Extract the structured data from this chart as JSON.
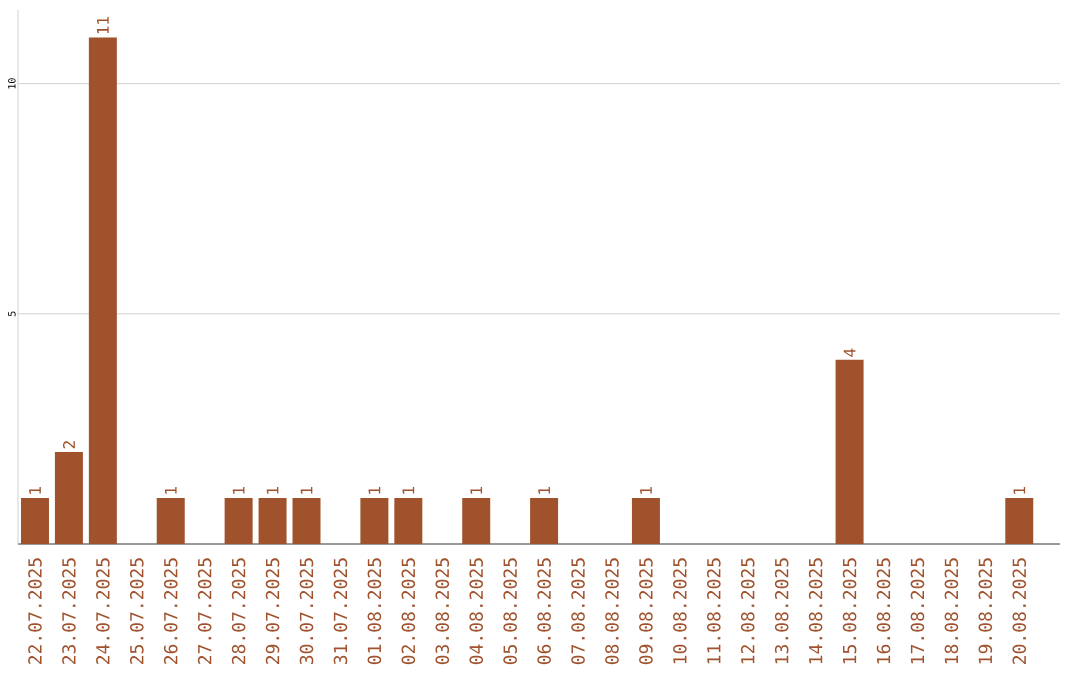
{
  "chart_data": {
    "type": "bar",
    "categories": [
      "22.07.2025",
      "23.07.2025",
      "24.07.2025",
      "25.07.2025",
      "26.07.2025",
      "27.07.2025",
      "28.07.2025",
      "29.07.2025",
      "30.07.2025",
      "31.07.2025",
      "01.08.2025",
      "02.08.2025",
      "03.08.2025",
      "04.08.2025",
      "05.08.2025",
      "06.08.2025",
      "07.08.2025",
      "08.08.2025",
      "09.08.2025",
      "10.08.2025",
      "11.08.2025",
      "12.08.2025",
      "13.08.2025",
      "14.08.2025",
      "15.08.2025",
      "16.08.2025",
      "17.08.2025",
      "18.08.2025",
      "19.08.2025",
      "20.08.2025"
    ],
    "values": [
      1,
      2,
      11,
      0,
      1,
      0,
      1,
      1,
      1,
      0,
      1,
      1,
      0,
      1,
      0,
      1,
      0,
      0,
      1,
      0,
      0,
      0,
      0,
      0,
      4,
      0,
      0,
      0,
      0,
      1
    ],
    "value_labels": [
      "1",
      "2",
      "11",
      null,
      "1",
      null,
      "1",
      "1",
      "1",
      null,
      "1",
      "1",
      null,
      "1",
      null,
      "1",
      null,
      null,
      "1",
      null,
      null,
      null,
      null,
      null,
      "4",
      null,
      null,
      null,
      null,
      "1"
    ],
    "color": "#a0522d",
    "ylim": [
      0,
      11.6
    ],
    "yticks": [
      5,
      10
    ],
    "grid": "y"
  }
}
